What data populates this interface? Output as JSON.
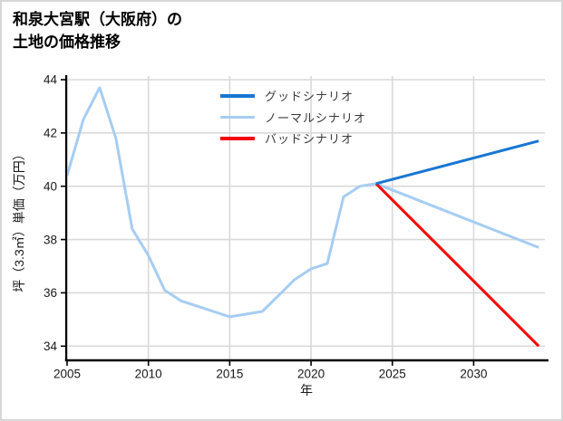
{
  "window": {
    "background": "#ffffff",
    "border_color": "#d7d7d7"
  },
  "title": {
    "line1": "和泉大宮駅（大阪府）の",
    "line2": "土地の価格推移"
  },
  "chart_data": {
    "type": "line",
    "title": "和泉大宮駅（大阪府）の土地の価格推移",
    "xlabel": "年",
    "ylabel": "坪（3.3㎡）単価（万円）",
    "xlim": [
      2005,
      2034.1
    ],
    "ylim": [
      33.5,
      44
    ],
    "x_ticks": [
      2005,
      2010,
      2015,
      2020,
      2025,
      2030
    ],
    "y_ticks": [
      34,
      36,
      38,
      40,
      42,
      44
    ],
    "grid": true,
    "legend_position": "top-center",
    "series": [
      {
        "key": "good",
        "name": "グッドシナリオ",
        "color": "#1976d2",
        "draw_order": 2,
        "points": [
          [
            2024,
            40.1
          ],
          [
            2034,
            41.7
          ]
        ]
      },
      {
        "key": "normal",
        "name": "ノーマルシナリオ",
        "color": "#a6cdf2",
        "draw_order": 0,
        "points": [
          [
            2005,
            40.4
          ],
          [
            2006,
            42.5
          ],
          [
            2007,
            43.7
          ],
          [
            2008,
            41.8
          ],
          [
            2009,
            38.4
          ],
          [
            2010,
            37.4
          ],
          [
            2011,
            36.1
          ],
          [
            2012,
            35.7
          ],
          [
            2013,
            35.5
          ],
          [
            2014,
            35.3
          ],
          [
            2015,
            35.1
          ],
          [
            2016,
            35.2
          ],
          [
            2017,
            35.3
          ],
          [
            2018,
            35.9
          ],
          [
            2019,
            36.5
          ],
          [
            2020,
            36.9
          ],
          [
            2021,
            37.1
          ],
          [
            2022,
            39.6
          ],
          [
            2023,
            40.0
          ],
          [
            2024,
            40.1
          ],
          [
            2034,
            37.7
          ]
        ]
      },
      {
        "key": "bad",
        "name": "バッドシナリオ",
        "color": "#f40000",
        "draw_order": 1,
        "points": [
          [
            2024,
            40.1
          ],
          [
            2034,
            34.0
          ]
        ]
      }
    ],
    "styles": {
      "grid_color": "#d9d9d9",
      "spine_color": "#000000",
      "tick_label_color": "#1a1a1a",
      "line_width": 3
    }
  }
}
